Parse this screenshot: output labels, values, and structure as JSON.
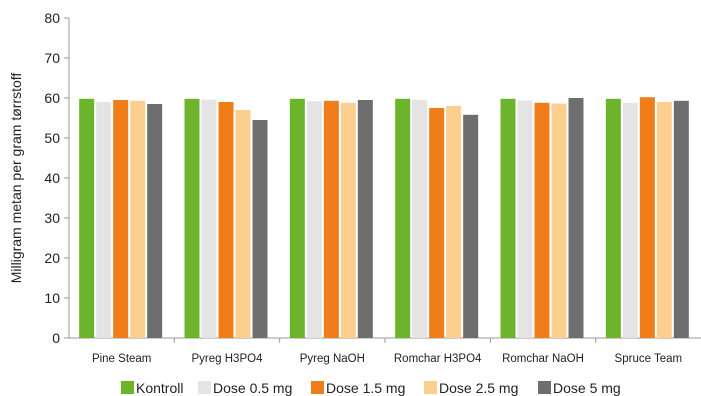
{
  "chart_data": {
    "type": "bar",
    "ylabel": "Milligram metan per gram tørrstoff",
    "xlabel": "",
    "ylim": [
      0,
      80
    ],
    "yticks": [
      0,
      10,
      20,
      30,
      40,
      50,
      60,
      70,
      80
    ],
    "grid": false,
    "legend_position": "bottom",
    "categories": [
      "Pine Steam",
      "Pyreg H3PO4",
      "Pyreg NaOH",
      "Romchar H3PO4",
      "Romchar NaOH",
      "Spruce Team"
    ],
    "series": [
      {
        "name": "Kontroll",
        "color": "#6cb42c",
        "values": [
          59.8,
          59.8,
          59.8,
          59.8,
          59.8,
          59.8
        ]
      },
      {
        "name": "Dose 0.5 mg",
        "color": "#e4e4e4",
        "values": [
          59.0,
          59.6,
          59.2,
          59.5,
          59.4,
          58.8
        ]
      },
      {
        "name": "Dose 1.5 mg",
        "color": "#f07c1a",
        "values": [
          59.5,
          59.0,
          59.3,
          57.5,
          58.8,
          60.2
        ]
      },
      {
        "name": "Dose 2.5 mg",
        "color": "#fccf8e",
        "values": [
          59.3,
          57.0,
          58.8,
          58.0,
          58.6,
          59.0
        ]
      },
      {
        "name": "Dose 5 mg",
        "color": "#6e6e6e",
        "values": [
          58.5,
          54.5,
          59.5,
          55.8,
          60.0,
          59.3
        ]
      }
    ]
  }
}
